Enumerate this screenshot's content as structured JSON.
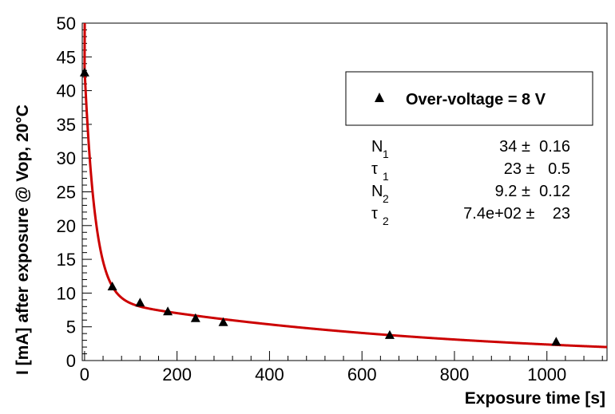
{
  "chart_data": {
    "type": "scatter",
    "title": "",
    "xlabel": "Exposure time [s]",
    "ylabel": "I [mA] after exposure @ Vop, 20°C",
    "xlim": [
      -5,
      1130
    ],
    "ylim": [
      0,
      50
    ],
    "x_ticks": [
      "0",
      "200",
      "400",
      "600",
      "800",
      "1000"
    ],
    "y_ticks": [
      "0",
      "5",
      "10",
      "15",
      "20",
      "25",
      "30",
      "35",
      "40",
      "45",
      "50"
    ],
    "grid": false,
    "legend_position": "top-right",
    "series": [
      {
        "name": "Over-voltage = 8 V",
        "marker": "triangle",
        "color": "#000000",
        "points": [
          {
            "x": 0,
            "y": 42.7
          },
          {
            "x": 60,
            "y": 11.0
          },
          {
            "x": 120,
            "y": 8.6
          },
          {
            "x": 180,
            "y": 7.3
          },
          {
            "x": 240,
            "y": 6.3
          },
          {
            "x": 300,
            "y": 5.7
          },
          {
            "x": 660,
            "y": 3.8
          },
          {
            "x": 1020,
            "y": 2.8
          }
        ]
      }
    ],
    "fit": {
      "color": "#cc0000",
      "model": "N1*exp(-t/tau1) + N2*exp(-t/tau2)",
      "params": {
        "N1": 34,
        "tau1": 23,
        "N2": 9.2,
        "tau2": 740
      }
    },
    "stats": [
      {
        "name": "N",
        "sub": "1",
        "value": "34 ±  0.16"
      },
      {
        "name": "τ",
        "sub": "1",
        "value": "23 ±   0.5"
      },
      {
        "name": "N",
        "sub": "2",
        "value": "9.2 ±  0.12"
      },
      {
        "name": "τ",
        "sub": "2",
        "value": "7.4e+02 ±    23"
      }
    ]
  }
}
